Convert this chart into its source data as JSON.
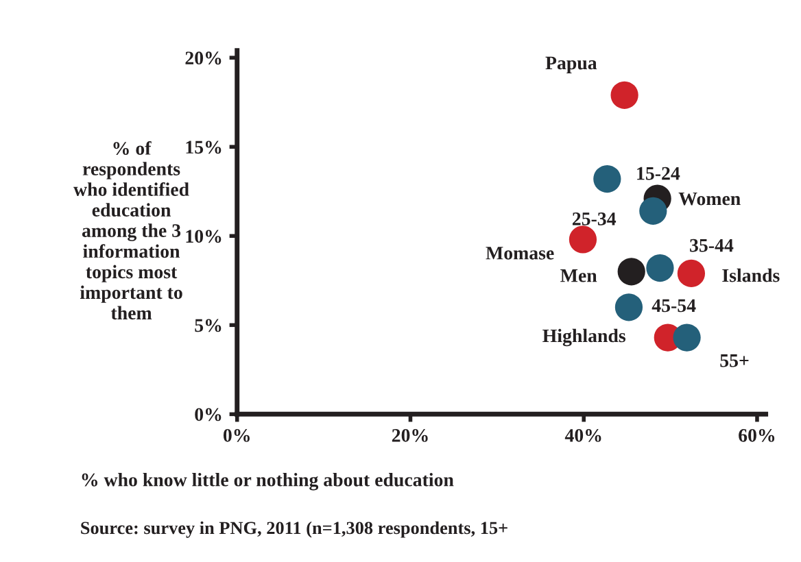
{
  "chart_data": {
    "type": "scatter",
    "xlabel": "% who know little or nothing about education",
    "ylabel": "% of\nrespondents\nwho identified\neducation\namong the 3\ninformation\ntopics most\nimportant to\nthem",
    "x": [
      44.7,
      42.7,
      48.5,
      48.0,
      39.9,
      45.5,
      48.8,
      52.4,
      45.2,
      49.7,
      51.9
    ],
    "values": [
      17.9,
      13.2,
      12.1,
      11.4,
      9.8,
      8.0,
      8.2,
      7.9,
      6.0,
      4.3,
      4.3
    ],
    "colors": [
      "#d0232a",
      "#24607a",
      "#231f20",
      "#24607a",
      "#d0232a",
      "#231f20",
      "#24607a",
      "#d0232a",
      "#24607a",
      "#d0232a",
      "#24607a"
    ],
    "marker": "circle",
    "xlim": [
      0,
      61
    ],
    "ylim": [
      0,
      20.4
    ],
    "xticks": [
      {
        "value": 0,
        "label": "0%"
      },
      {
        "value": 20,
        "label": "20%"
      },
      {
        "value": 40,
        "label": "40%"
      },
      {
        "value": 60,
        "label": "60%"
      }
    ],
    "yticks": [
      {
        "value": 0,
        "label": "0%"
      },
      {
        "value": 5,
        "label": "5%"
      },
      {
        "value": 10,
        "label": "10%"
      },
      {
        "value": 15,
        "label": "15%"
      },
      {
        "value": 20,
        "label": "20%"
      }
    ],
    "grid": false,
    "legend": false,
    "annotations": [
      {
        "text": "Papua",
        "x": 44.7,
        "y": 17.9
      },
      {
        "text": "15-24",
        "x": 42.7,
        "y": 13.2
      },
      {
        "text": "Women",
        "x": 48.5,
        "y": 12.1
      },
      {
        "text": "25-34",
        "x": 48.0,
        "y": 11.4
      },
      {
        "text": "Momase",
        "x": 39.9,
        "y": 9.8
      },
      {
        "text": "Men",
        "x": 45.5,
        "y": 8.0
      },
      {
        "text": "35-44",
        "x": 48.8,
        "y": 8.2
      },
      {
        "text": "Islands",
        "x": 52.4,
        "y": 7.9
      },
      {
        "text": "45-54",
        "x": 45.2,
        "y": 6.0
      },
      {
        "text": "Highlands",
        "x": 49.7,
        "y": 4.3
      },
      {
        "text": "55+",
        "x": 51.9,
        "y": 4.3
      },
      "Source: survey in PNG, 2011 (n=1,308 respondents, 15+"
    ]
  }
}
